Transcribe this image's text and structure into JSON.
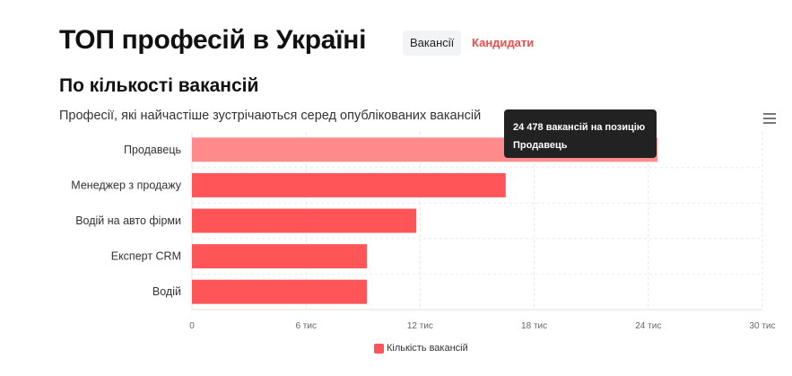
{
  "header": {
    "title": "ТОП професій в Україні",
    "tabs": [
      {
        "label": "Вакансії"
      },
      {
        "label": "Кандидати"
      }
    ]
  },
  "section": {
    "title": "По кількості вакансій",
    "subtitle": "Професії, які найчастіше зустрічаються серед опублікованих вакансій"
  },
  "tooltip": {
    "line1": "24 478 вакансій на позицію",
    "line2": "Продавець"
  },
  "colors": {
    "bar": "#ff5558",
    "bar_hover": "#ff8a8c",
    "accent": "#ef4b4b"
  },
  "chart_data": {
    "type": "bar",
    "orientation": "horizontal",
    "categories": [
      "Продавець",
      "Менеджер з продажу",
      "Водій на авто фірми",
      "Експерт CRM",
      "Водій"
    ],
    "series": [
      {
        "name": "Кількість вакансій",
        "values": [
          24478,
          16500,
          11800,
          9200,
          9200
        ]
      }
    ],
    "xlim": [
      0,
      30000
    ],
    "x_ticks": [
      0,
      6000,
      12000,
      18000,
      24000,
      30000
    ],
    "x_tick_labels": [
      "0",
      "6 тис",
      "12 тис",
      "18 тис",
      "24 тис",
      "30 тис"
    ],
    "highlighted_index": 0,
    "grid": true,
    "legend": "bottom-center"
  }
}
